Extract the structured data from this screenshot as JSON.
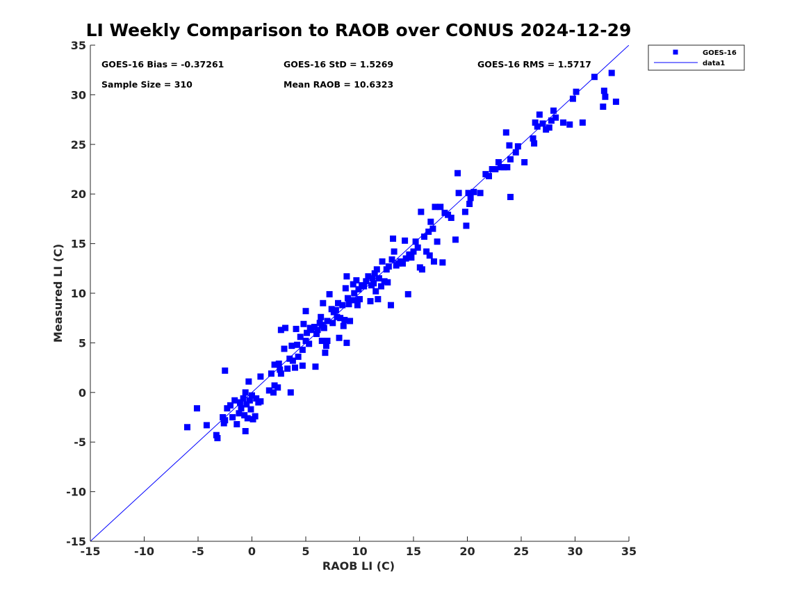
{
  "chart_data": {
    "type": "scatter",
    "title": "LI Weekly Comparison to RAOB over CONUS 2024-12-29",
    "xlabel": "RAOB LI (C)",
    "ylabel": "Measured LI (C)",
    "xlim": [
      -15,
      35
    ],
    "ylim": [
      -15,
      35
    ],
    "xticks": [
      -15,
      -10,
      -5,
      0,
      5,
      10,
      15,
      20,
      25,
      30,
      35
    ],
    "yticks": [
      -15,
      -10,
      -5,
      0,
      5,
      10,
      15,
      20,
      25,
      30,
      35
    ],
    "grid": false,
    "legend_position": "outside-top-right",
    "colors": {
      "series": "#0000ff",
      "line": "#0000ff",
      "axis": "#262626"
    },
    "stats": {
      "bias": "GOES-16 Bias = -0.37261",
      "std": "GOES-16 StD = 1.5269",
      "rms": "GOES-16 RMS = 1.5717",
      "sample_size": "Sample Size = 310",
      "mean_raob": "Mean RAOB = 10.6323"
    },
    "series": [
      {
        "name": "GOES-16",
        "kind": "scatter",
        "marker": "square",
        "points": [
          [
            -6.0,
            -3.5
          ],
          [
            -5.1,
            -1.6
          ],
          [
            -4.2,
            -3.3
          ],
          [
            -3.3,
            -4.3
          ],
          [
            -3.2,
            -4.6
          ],
          [
            -2.7,
            -2.5
          ],
          [
            -2.6,
            -3.1
          ],
          [
            -2.5,
            -2.8
          ],
          [
            -2.5,
            2.2
          ],
          [
            -2.3,
            -1.6
          ],
          [
            -2.0,
            -1.3
          ],
          [
            -1.8,
            -2.5
          ],
          [
            -1.6,
            -0.8
          ],
          [
            -1.4,
            -3.2
          ],
          [
            -1.2,
            -2.1
          ],
          [
            -1.1,
            -1.0
          ],
          [
            -1.0,
            -1.6
          ],
          [
            -0.8,
            -0.6
          ],
          [
            -0.7,
            -2.3
          ],
          [
            -0.6,
            0.0
          ],
          [
            -0.6,
            -3.9
          ],
          [
            -0.5,
            -1.2
          ],
          [
            -0.4,
            -2.6
          ],
          [
            -0.3,
            1.1
          ],
          [
            -0.2,
            -0.8
          ],
          [
            -0.1,
            -1.7
          ],
          [
            0.0,
            -0.3
          ],
          [
            0.1,
            -2.7
          ],
          [
            0.3,
            -2.4
          ],
          [
            0.4,
            -0.6
          ],
          [
            0.6,
            -1.0
          ],
          [
            0.8,
            -0.9
          ],
          [
            0.8,
            1.6
          ],
          [
            1.6,
            0.2
          ],
          [
            1.8,
            1.9
          ],
          [
            2.0,
            0.0
          ],
          [
            2.1,
            0.7
          ],
          [
            2.1,
            2.8
          ],
          [
            2.4,
            0.5
          ],
          [
            2.5,
            2.9
          ],
          [
            2.6,
            2.3
          ],
          [
            2.7,
            6.3
          ],
          [
            2.7,
            1.9
          ],
          [
            3.0,
            4.4
          ],
          [
            3.1,
            6.5
          ],
          [
            3.3,
            2.4
          ],
          [
            3.5,
            3.4
          ],
          [
            3.6,
            0.0
          ],
          [
            3.7,
            4.7
          ],
          [
            3.8,
            3.2
          ],
          [
            4.0,
            2.5
          ],
          [
            4.1,
            6.4
          ],
          [
            4.2,
            4.8
          ],
          [
            4.3,
            3.6
          ],
          [
            4.5,
            5.6
          ],
          [
            4.7,
            2.7
          ],
          [
            4.7,
            4.3
          ],
          [
            4.8,
            6.9
          ],
          [
            5.0,
            5.2
          ],
          [
            5.0,
            8.2
          ],
          [
            5.1,
            6.0
          ],
          [
            5.3,
            4.9
          ],
          [
            5.4,
            6.5
          ],
          [
            5.5,
            6.3
          ],
          [
            5.8,
            6.6
          ],
          [
            5.9,
            2.6
          ],
          [
            6.0,
            5.9
          ],
          [
            6.1,
            6.3
          ],
          [
            6.3,
            7.0
          ],
          [
            6.4,
            7.6
          ],
          [
            6.5,
            6.8
          ],
          [
            6.5,
            5.2
          ],
          [
            6.6,
            9.0
          ],
          [
            6.7,
            6.5
          ],
          [
            6.8,
            4.0
          ],
          [
            6.9,
            4.7
          ],
          [
            7.0,
            7.2
          ],
          [
            7.0,
            5.2
          ],
          [
            7.2,
            9.9
          ],
          [
            7.4,
            8.4
          ],
          [
            7.5,
            7.0
          ],
          [
            7.6,
            8.1
          ],
          [
            7.8,
            8.3
          ],
          [
            7.9,
            7.6
          ],
          [
            8.0,
            9.0
          ],
          [
            8.1,
            5.5
          ],
          [
            8.2,
            7.5
          ],
          [
            8.4,
            8.8
          ],
          [
            8.5,
            6.7
          ],
          [
            8.6,
            7.3
          ],
          [
            8.7,
            10.5
          ],
          [
            8.8,
            11.7
          ],
          [
            8.8,
            5.0
          ],
          [
            8.9,
            9.5
          ],
          [
            9.0,
            8.9
          ],
          [
            9.1,
            7.2
          ],
          [
            9.3,
            9.3
          ],
          [
            9.4,
            10.9
          ],
          [
            9.5,
            10.0
          ],
          [
            9.6,
            9.3
          ],
          [
            9.7,
            11.3
          ],
          [
            9.8,
            8.8
          ],
          [
            9.9,
            10.4
          ],
          [
            10.0,
            9.4
          ],
          [
            10.2,
            10.8
          ],
          [
            10.4,
            10.7
          ],
          [
            10.6,
            11.2
          ],
          [
            10.8,
            11.7
          ],
          [
            11.0,
            9.2
          ],
          [
            11.1,
            10.8
          ],
          [
            11.2,
            11.5
          ],
          [
            11.3,
            11.0
          ],
          [
            11.4,
            12.0
          ],
          [
            11.5,
            10.2
          ],
          [
            11.6,
            12.4
          ],
          [
            11.7,
            9.4
          ],
          [
            11.8,
            11.5
          ],
          [
            12.0,
            10.7
          ],
          [
            12.1,
            13.2
          ],
          [
            12.3,
            11.2
          ],
          [
            12.5,
            12.4
          ],
          [
            12.6,
            11.1
          ],
          [
            12.7,
            12.7
          ],
          [
            12.9,
            8.8
          ],
          [
            13.0,
            13.4
          ],
          [
            13.1,
            15.5
          ],
          [
            13.2,
            14.2
          ],
          [
            13.4,
            12.8
          ],
          [
            13.6,
            13.0
          ],
          [
            13.8,
            13.2
          ],
          [
            14.0,
            13.0
          ],
          [
            14.2,
            15.3
          ],
          [
            14.3,
            13.5
          ],
          [
            14.5,
            9.9
          ],
          [
            14.6,
            13.9
          ],
          [
            14.8,
            13.6
          ],
          [
            15.0,
            14.2
          ],
          [
            15.2,
            15.2
          ],
          [
            15.4,
            14.6
          ],
          [
            15.6,
            12.6
          ],
          [
            15.7,
            18.2
          ],
          [
            15.8,
            12.4
          ],
          [
            16.0,
            15.7
          ],
          [
            16.2,
            14.2
          ],
          [
            16.4,
            16.2
          ],
          [
            16.5,
            13.8
          ],
          [
            16.6,
            17.2
          ],
          [
            16.8,
            16.5
          ],
          [
            16.9,
            13.2
          ],
          [
            17.0,
            18.7
          ],
          [
            17.2,
            15.2
          ],
          [
            17.5,
            18.7
          ],
          [
            17.7,
            13.1
          ],
          [
            17.9,
            18.1
          ],
          [
            18.2,
            17.9
          ],
          [
            18.5,
            17.6
          ],
          [
            18.9,
            15.4
          ],
          [
            19.1,
            22.1
          ],
          [
            19.2,
            20.1
          ],
          [
            19.8,
            18.2
          ],
          [
            19.9,
            16.8
          ],
          [
            20.1,
            20.1
          ],
          [
            20.2,
            19.0
          ],
          [
            20.3,
            19.6
          ],
          [
            20.6,
            20.2
          ],
          [
            21.2,
            20.1
          ],
          [
            21.7,
            22.0
          ],
          [
            22.0,
            21.8
          ],
          [
            22.3,
            22.5
          ],
          [
            22.6,
            22.5
          ],
          [
            22.9,
            23.2
          ],
          [
            23.1,
            22.7
          ],
          [
            23.4,
            22.7
          ],
          [
            23.6,
            26.2
          ],
          [
            23.7,
            22.7
          ],
          [
            23.9,
            24.9
          ],
          [
            24.0,
            19.7
          ],
          [
            24.0,
            23.5
          ],
          [
            24.5,
            24.2
          ],
          [
            24.7,
            24.8
          ],
          [
            25.3,
            23.2
          ],
          [
            26.1,
            25.6
          ],
          [
            26.2,
            25.1
          ],
          [
            26.3,
            27.2
          ],
          [
            26.5,
            26.8
          ],
          [
            26.7,
            28.0
          ],
          [
            27.0,
            27.1
          ],
          [
            27.3,
            26.5
          ],
          [
            27.6,
            26.7
          ],
          [
            27.8,
            27.4
          ],
          [
            28.0,
            28.4
          ],
          [
            28.2,
            27.7
          ],
          [
            28.9,
            27.2
          ],
          [
            29.5,
            27.0
          ],
          [
            29.8,
            29.6
          ],
          [
            30.1,
            30.3
          ],
          [
            30.7,
            27.2
          ],
          [
            31.8,
            31.8
          ],
          [
            32.6,
            28.8
          ],
          [
            32.7,
            30.4
          ],
          [
            32.8,
            29.8
          ],
          [
            33.4,
            32.2
          ],
          [
            33.8,
            29.3
          ]
        ]
      },
      {
        "name": "data1",
        "kind": "line",
        "points": [
          [
            -15,
            -15
          ],
          [
            35,
            35
          ]
        ]
      }
    ]
  }
}
